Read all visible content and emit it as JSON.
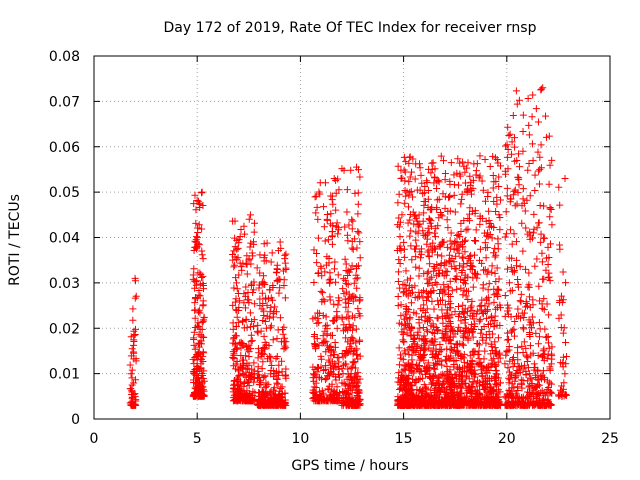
{
  "chart_data": {
    "type": "scatter",
    "title": "Day 172 of 2019, Rate Of TEC Index for receiver rnsp",
    "xlabel": "GPS time / hours",
    "ylabel": "ROTI / TECUs",
    "xlim": [
      0,
      25
    ],
    "ylim": [
      0,
      0.08
    ],
    "x_ticks": [
      0,
      5,
      10,
      15,
      20,
      25
    ],
    "x_tick_labels": [
      "0",
      "5",
      "10",
      "15",
      "20",
      "25"
    ],
    "y_ticks": [
      0,
      0.01,
      0.02,
      0.03,
      0.04,
      0.05,
      0.06,
      0.07,
      0.08
    ],
    "y_tick_labels": [
      "0",
      "0.01",
      "0.02",
      "0.03",
      "0.04",
      "0.05",
      "0.06",
      "0.07",
      "0.08"
    ],
    "grid": true,
    "marker": "plus",
    "color": "#ff0000",
    "clusters": [
      {
        "x_start": 1.75,
        "x_end": 2.05,
        "y_min": 0.003,
        "y_max": 0.031,
        "count": 60
      },
      {
        "x_start": 4.8,
        "x_end": 5.35,
        "y_min": 0.005,
        "y_max": 0.05,
        "count": 220
      },
      {
        "x_start": 6.7,
        "x_end": 7.8,
        "y_min": 0.004,
        "y_max": 0.045,
        "count": 300
      },
      {
        "x_start": 7.9,
        "x_end": 9.3,
        "y_min": 0.003,
        "y_max": 0.039,
        "count": 340
      },
      {
        "x_start": 10.6,
        "x_end": 11.9,
        "y_min": 0.004,
        "y_max": 0.053,
        "count": 280
      },
      {
        "x_start": 12.0,
        "x_end": 12.9,
        "y_min": 0.003,
        "y_max": 0.0555,
        "count": 260
      },
      {
        "x_start": 14.7,
        "x_end": 19.7,
        "y_min": 0.003,
        "y_max": 0.058,
        "count": 1800
      },
      {
        "x_start": 19.9,
        "x_end": 22.2,
        "y_min": 0.003,
        "y_max": 0.073,
        "count": 520
      },
      {
        "x_start": 22.5,
        "x_end": 22.9,
        "y_min": 0.005,
        "y_max": 0.053,
        "count": 40
      }
    ]
  }
}
